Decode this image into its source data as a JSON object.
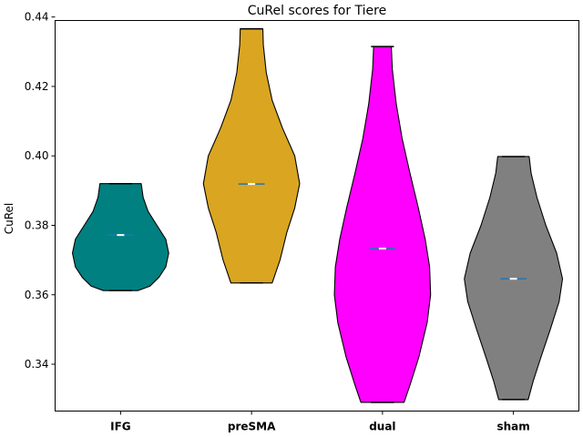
{
  "chart_data": {
    "type": "violin",
    "title": "CuRel scores for Tiere",
    "xlabel": "",
    "ylabel": "CuRel",
    "ylim": [
      0.3265,
      0.439
    ],
    "yticks": [
      0.34,
      0.36,
      0.38,
      0.4,
      0.42,
      0.44
    ],
    "ytick_labels": [
      "0.34",
      "0.36",
      "0.38",
      "0.40",
      "0.42",
      "0.44"
    ],
    "categories": [
      "IFG",
      "preSMA",
      "dual",
      "sham"
    ],
    "grid": false,
    "series": [
      {
        "category": "IFG",
        "color": "#008080",
        "min": 0.3612,
        "max": 0.392,
        "mean": 0.3772,
        "median": 0.3772,
        "profile": [
          [
            0.3612,
            0.35
          ],
          [
            0.3625,
            0.6
          ],
          [
            0.365,
            0.78
          ],
          [
            0.368,
            0.92
          ],
          [
            0.372,
            0.98
          ],
          [
            0.376,
            0.92
          ],
          [
            0.38,
            0.74
          ],
          [
            0.384,
            0.56
          ],
          [
            0.388,
            0.46
          ],
          [
            0.392,
            0.42
          ]
        ]
      },
      {
        "category": "preSMA",
        "color": "#DAA520",
        "min": 0.3634,
        "max": 0.4366,
        "mean": 0.3919,
        "median": 0.3919,
        "profile": [
          [
            0.3634,
            0.42
          ],
          [
            0.37,
            0.58
          ],
          [
            0.378,
            0.72
          ],
          [
            0.385,
            0.88
          ],
          [
            0.392,
            0.98
          ],
          [
            0.4,
            0.88
          ],
          [
            0.408,
            0.63
          ],
          [
            0.416,
            0.42
          ],
          [
            0.424,
            0.3
          ],
          [
            0.432,
            0.24
          ],
          [
            0.4366,
            0.23
          ]
        ]
      },
      {
        "category": "dual",
        "color": "#FF00FF",
        "min": 0.329,
        "max": 0.4315,
        "mean": 0.3733,
        "median": 0.3733,
        "profile": [
          [
            0.329,
            0.44
          ],
          [
            0.334,
            0.56
          ],
          [
            0.342,
            0.74
          ],
          [
            0.352,
            0.91
          ],
          [
            0.36,
            0.98
          ],
          [
            0.368,
            0.96
          ],
          [
            0.376,
            0.87
          ],
          [
            0.385,
            0.73
          ],
          [
            0.395,
            0.56
          ],
          [
            0.405,
            0.4
          ],
          [
            0.415,
            0.28
          ],
          [
            0.425,
            0.2
          ],
          [
            0.4315,
            0.18
          ]
        ]
      },
      {
        "category": "sham",
        "color": "#808080",
        "min": 0.3298,
        "max": 0.3998,
        "mean": 0.3646,
        "median": 0.3646,
        "profile": [
          [
            0.3298,
            0.3
          ],
          [
            0.335,
            0.4
          ],
          [
            0.342,
            0.56
          ],
          [
            0.35,
            0.75
          ],
          [
            0.358,
            0.93
          ],
          [
            0.3646,
            1.0
          ],
          [
            0.372,
            0.88
          ],
          [
            0.38,
            0.66
          ],
          [
            0.388,
            0.48
          ],
          [
            0.395,
            0.36
          ],
          [
            0.3998,
            0.32
          ]
        ]
      }
    ]
  }
}
